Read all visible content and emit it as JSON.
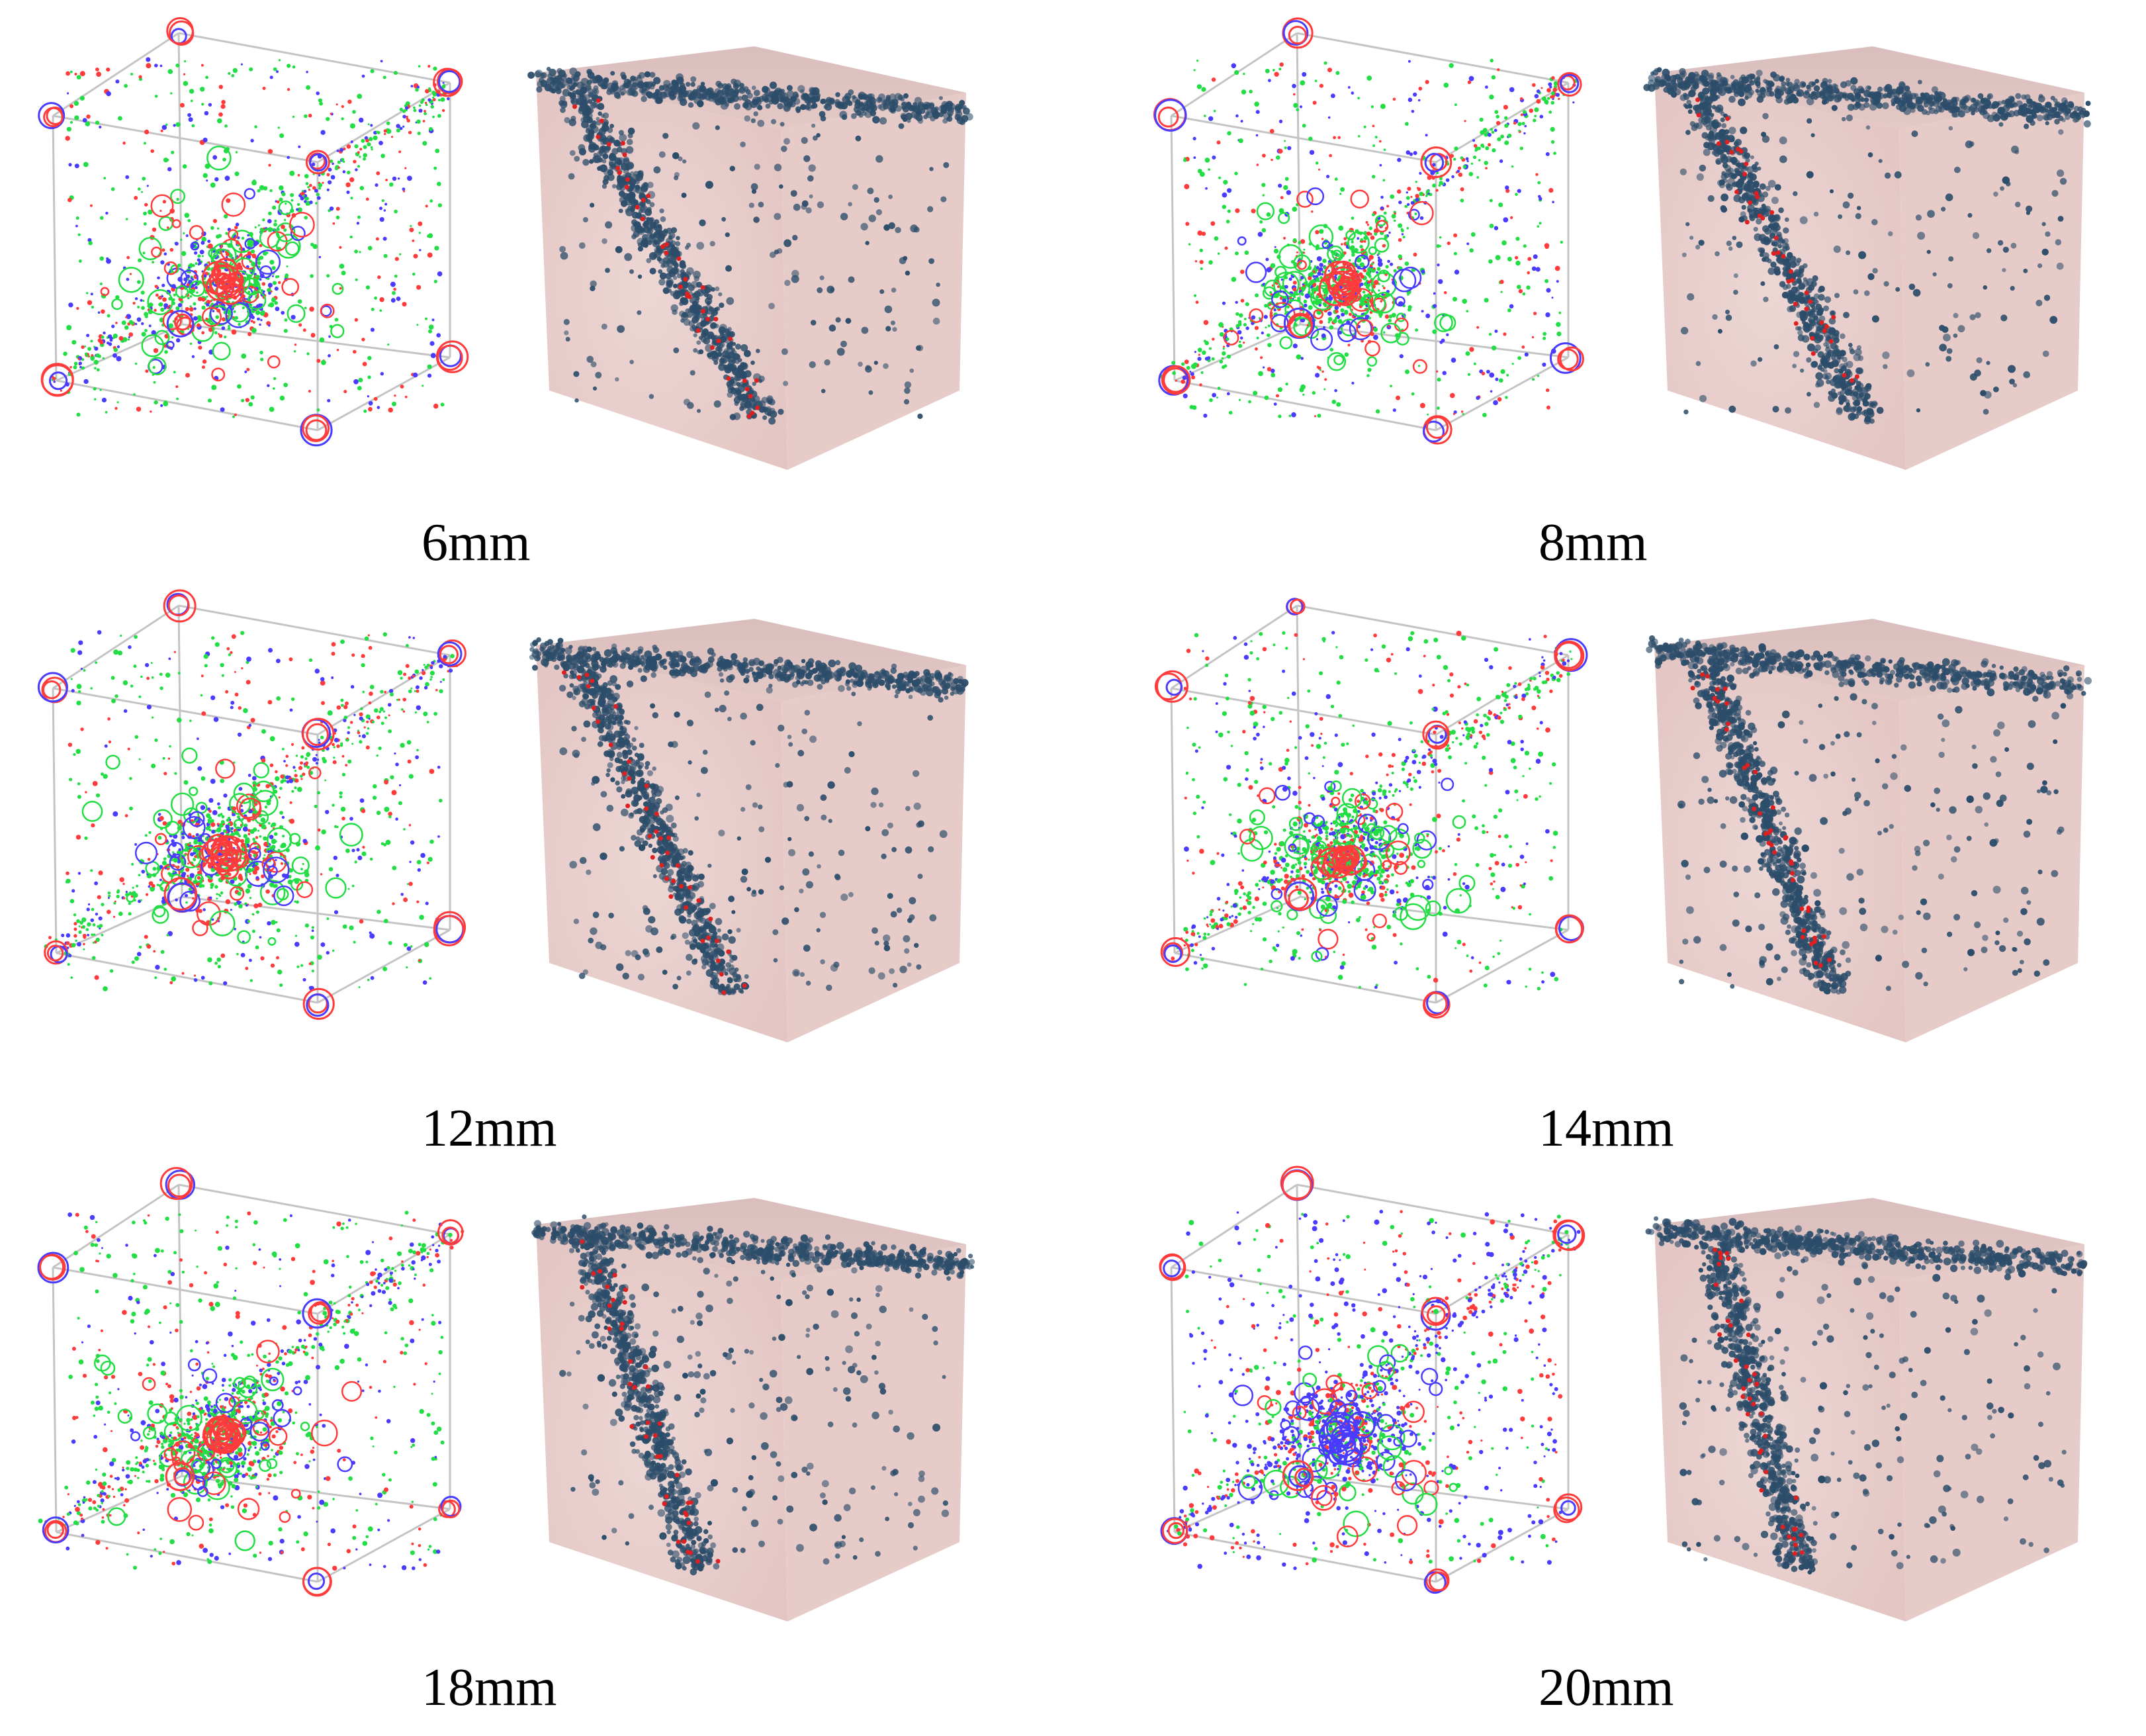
{
  "colors": {
    "circle_red": "#ff3b3b",
    "circle_green": "#22dd44",
    "circle_blue": "#4a3cff",
    "cube_edge": "#c4c4c4",
    "cluster_blue": "#2c4d6a",
    "solid_pink": "#e9cfcd",
    "highlight_red": "#e02020"
  },
  "panels": [
    {
      "label": "6mm"
    },
    {
      "label": "8mm"
    },
    {
      "label": "12mm"
    },
    {
      "label": "14mm"
    },
    {
      "label": "18mm"
    },
    {
      "label": "20mm"
    }
  ]
}
